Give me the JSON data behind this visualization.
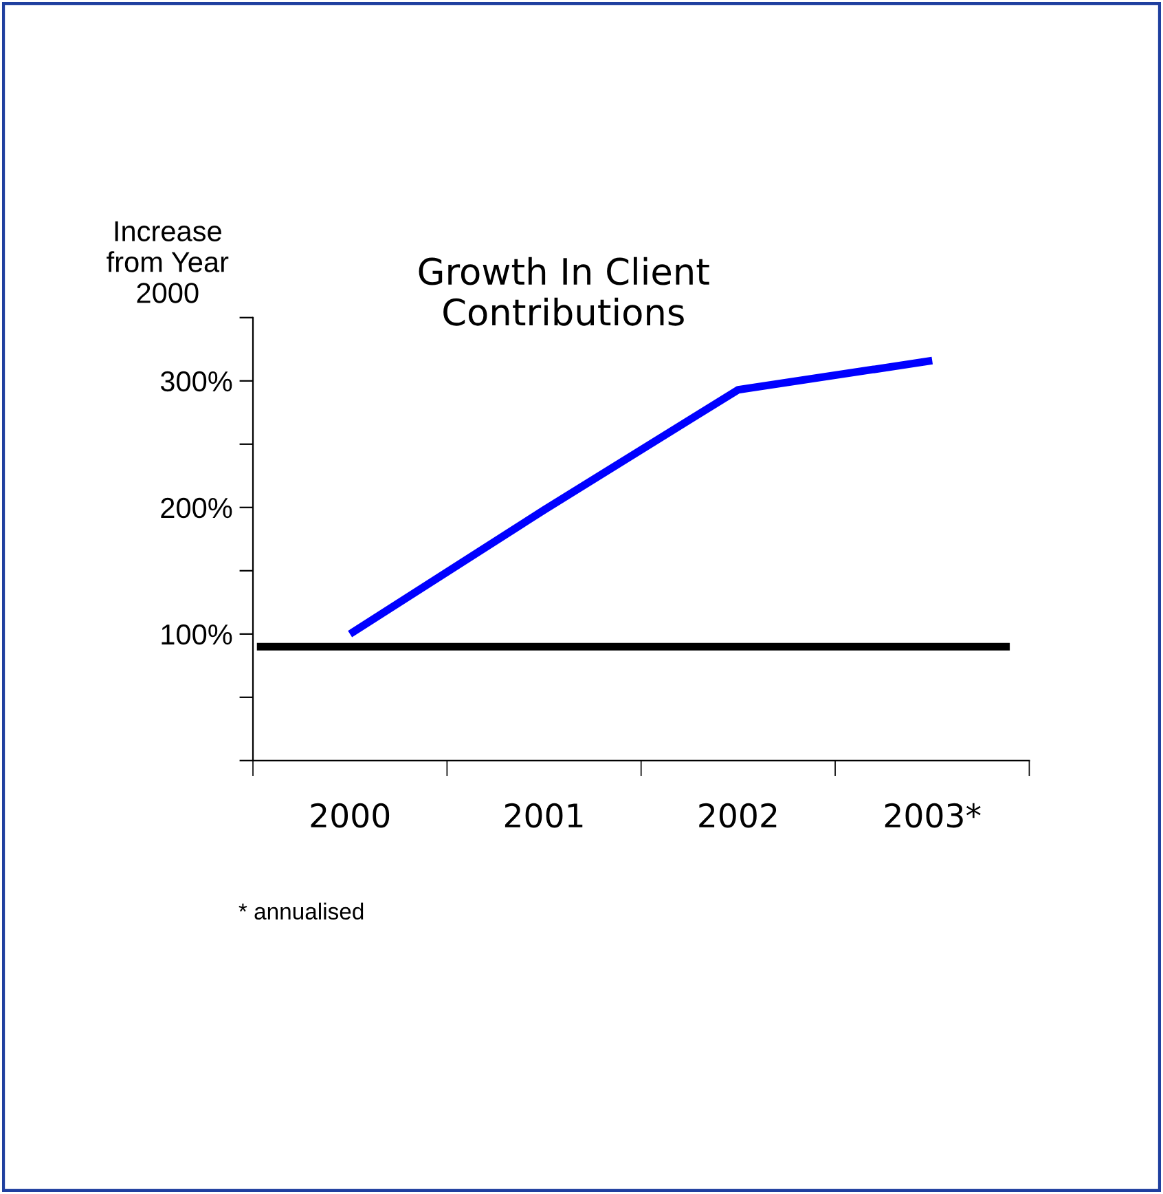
{
  "chart_data": {
    "type": "line",
    "title": "Growth In Client\nContributions",
    "ylabel": "Increase\nfrom Year\n2000",
    "categories": [
      "2000",
      "2001",
      "2002",
      "2003*"
    ],
    "series": [
      {
        "color": "#0000ff",
        "values": [
          100,
          198,
          293,
          316
        ]
      }
    ],
    "ylim": [
      0,
      350
    ],
    "yticks": [
      {
        "value": 0,
        "label": null
      },
      {
        "value": 50,
        "label": null
      },
      {
        "value": 100,
        "label": "100%"
      },
      {
        "value": 150,
        "label": null
      },
      {
        "value": 200,
        "label": "200%"
      },
      {
        "value": 250,
        "label": null
      },
      {
        "value": 300,
        "label": "300%"
      },
      {
        "value": 350,
        "label": null
      }
    ],
    "ref_lines": [
      {
        "axis": "y",
        "value": 90,
        "color": "#000000"
      }
    ],
    "annotations": [
      "* annualised"
    ],
    "grid": false,
    "legend": false,
    "marker": "none",
    "line_style": "solid"
  }
}
